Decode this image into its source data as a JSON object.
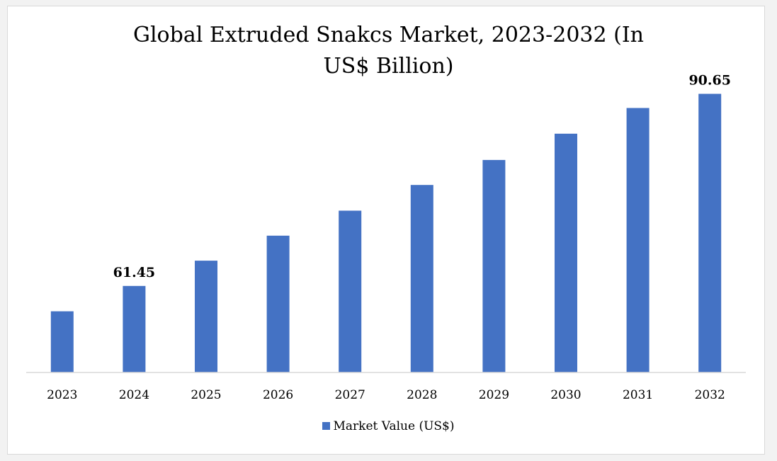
{
  "chart_data": {
    "type": "bar",
    "title_lines": [
      "Global Extruded Snakcs Market, 2023-2032 (In",
      "US$ Billion)"
    ],
    "categories": [
      "2023",
      "2024",
      "2025",
      "2026",
      "2027",
      "2028",
      "2029",
      "2030",
      "2031",
      "2032"
    ],
    "series": [
      {
        "name": "Market Value (US$)",
        "values": [
          57.6,
          61.45,
          65.3,
          69.1,
          72.9,
          76.8,
          80.6,
          84.6,
          88.5,
          90.65
        ],
        "color": "#4472c4"
      }
    ],
    "data_labels": [
      {
        "index": 1,
        "text": "61.45"
      },
      {
        "index": 9,
        "text": "90.65"
      }
    ],
    "ylim": [
      48.3,
      92.0
    ],
    "grid": false,
    "legend": "bottom-center"
  }
}
